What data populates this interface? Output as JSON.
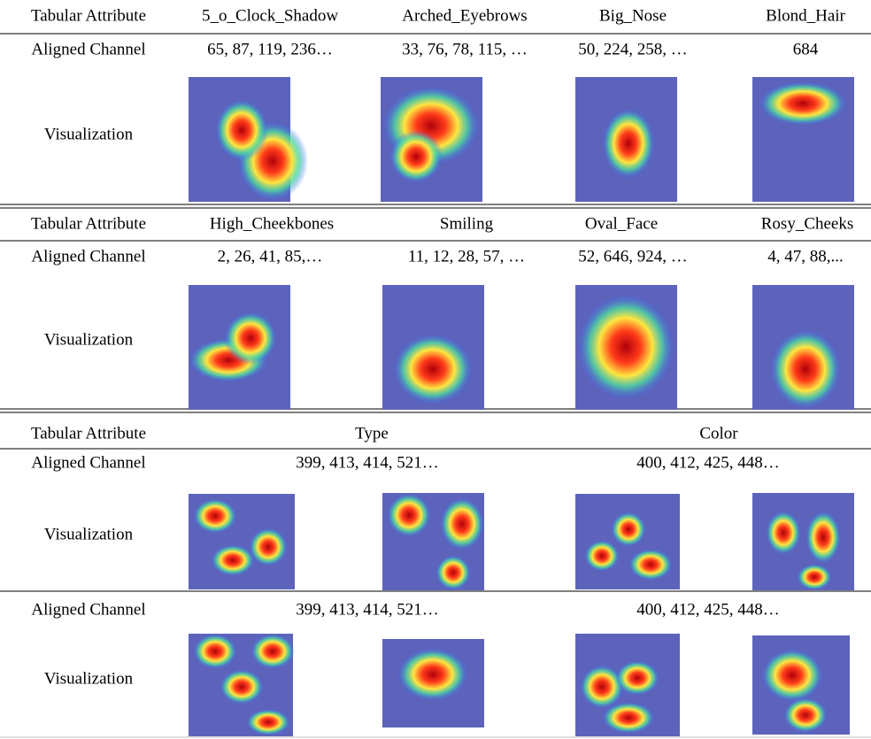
{
  "table": {
    "blocks": [
      {
        "rows": [
          [
            "Tabular Attribute",
            "5_o_Clock_Shadow",
            "Arched_Eyebrows",
            "Big_Nose",
            "Blond_Hair"
          ],
          [
            "Aligned Channel",
            "65, 87, 119, 236…",
            "33, 76, 78, 115, …",
            "50, 224, 258, …",
            "684"
          ],
          [
            "Visualization"
          ]
        ]
      },
      {
        "rows": [
          [
            "Tabular Attribute",
            "High_Cheekbones",
            "Smiling",
            "Oval_Face",
            "Rosy_Cheeks"
          ],
          [
            "Aligned Channel",
            "2, 26, 41, 85,…",
            "11, 12, 28, 57, …",
            "52, 646, 924, …",
            "4, 47, 88,..."
          ],
          [
            "Visualization"
          ]
        ]
      },
      {
        "rows": [
          [
            "Tabular Attribute",
            "Type",
            "Color"
          ],
          [
            "Aligned Channel",
            "399, 413, 414, 521…",
            "400, 412, 425, 448…"
          ],
          [
            "Visualization"
          ],
          [
            "Aligned Channel",
            "399, 413, 414, 521…",
            "400, 412, 425, 448…"
          ],
          [
            "Visualization"
          ]
        ]
      }
    ]
  }
}
